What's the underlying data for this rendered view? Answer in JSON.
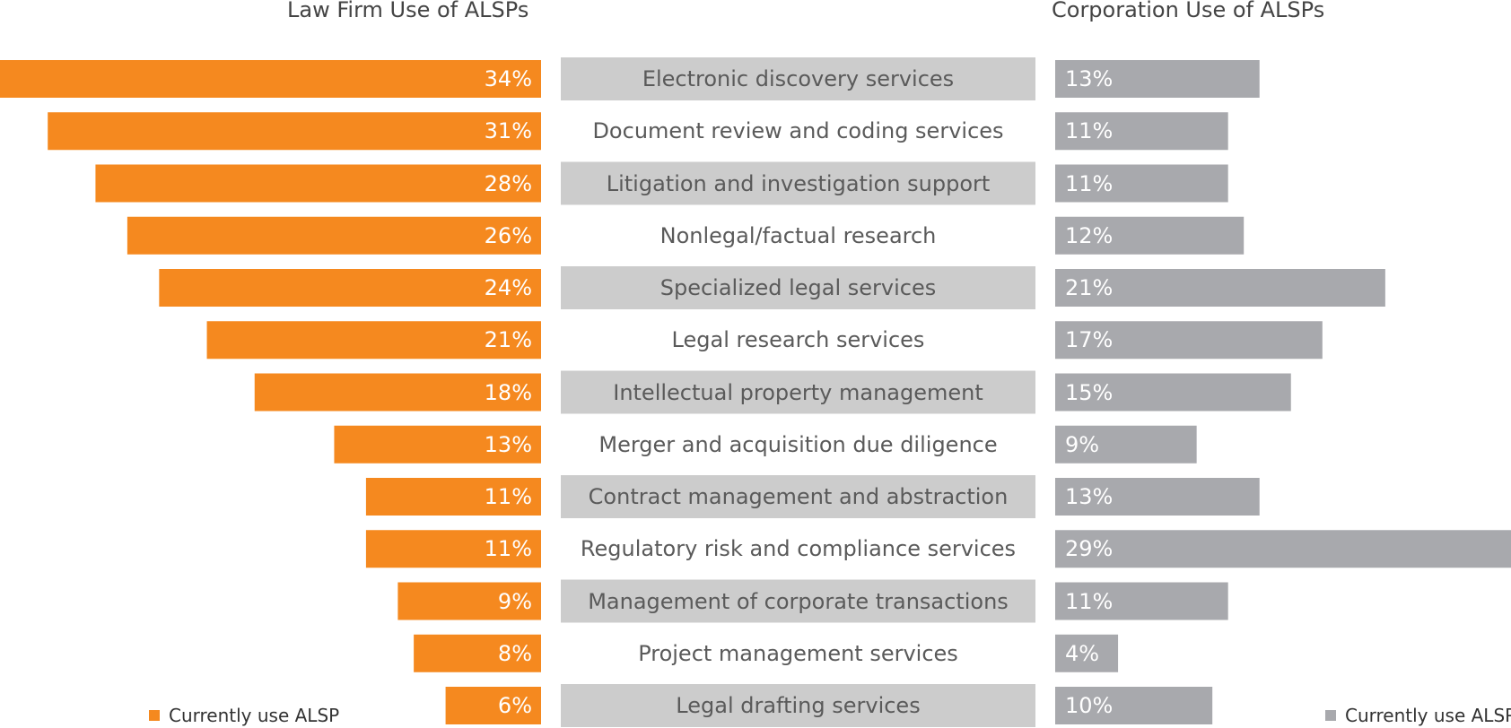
{
  "chart_data": {
    "type": "bar",
    "titles": {
      "left": "Law Firm Use of ALSPs",
      "right": "Corporation Use of ALSPs"
    },
    "categories": [
      "Electronic discovery services",
      "Document review and coding services",
      "Litigation and investigation support",
      "Nonlegal/factual research",
      "Specialized legal services",
      "Legal research services",
      "Intellectual property management",
      "Merger and acquisition due diligence",
      "Contract management and abstraction",
      "Regulatory risk and compliance services",
      "Management of corporate transactions",
      "Project management services",
      "Legal drafting services"
    ],
    "series": [
      {
        "name": "Currently use ALSP",
        "values": [
          34,
          31,
          28,
          26,
          24,
          21,
          18,
          13,
          11,
          11,
          9,
          8,
          6
        ],
        "labels": [
          "34%",
          "31%",
          "28%",
          "26%",
          "24%",
          "21%",
          "18%",
          "13%",
          "11%",
          "11%",
          "9%",
          "8%",
          "6%"
        ],
        "color": "#f5891f"
      },
      {
        "name": "Currently use ALSP",
        "values": [
          13,
          11,
          11,
          12,
          21,
          17,
          15,
          9,
          13,
          29,
          11,
          4,
          10
        ],
        "labels": [
          "13%",
          "11%",
          "11%",
          "12%",
          "21%",
          "17%",
          "15%",
          "9%",
          "13%",
          "29%",
          "11%",
          "4%",
          "10%"
        ],
        "color": "#a8a9ad"
      }
    ],
    "category_band_color": "#cccccc",
    "unit": "%",
    "legend": {
      "left": "Currently use ALSP",
      "right": "Currently use ALSP",
      "placement": "bottom"
    }
  }
}
